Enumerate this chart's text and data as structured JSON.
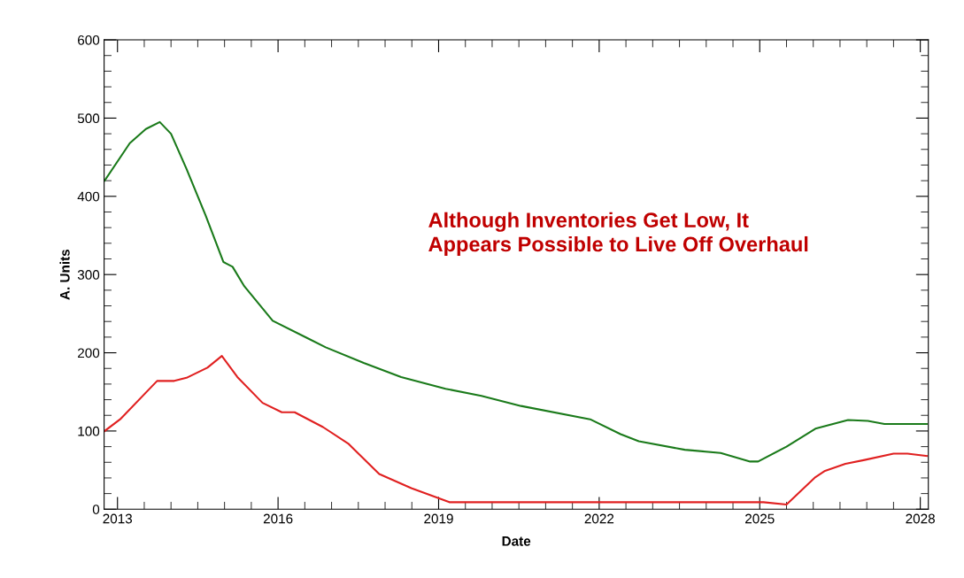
{
  "chart_data": {
    "type": "line",
    "xlabel": "Date",
    "ylabel": "A. Units",
    "xlim": [
      2012.75,
      2028.15
    ],
    "ylim": [
      0,
      600
    ],
    "xticks": [
      2013,
      2016,
      2019,
      2022,
      2025,
      2028
    ],
    "yticks": [
      0,
      100,
      200,
      300,
      400,
      500,
      600
    ],
    "grid": false,
    "legend": false,
    "marker": "none",
    "line_style": "solid",
    "annotations": [
      "Although Inventories Get Low, It\nAppears Possible to Live Off Overhaul"
    ],
    "series": [
      {
        "color": "#1a7a1a",
        "x": [
          2012.76,
          2013.23,
          2013.53,
          2013.79,
          2014.0,
          2014.29,
          2014.65,
          2014.98,
          2015.15,
          2015.37,
          2015.9,
          2016.54,
          2016.89,
          2017.6,
          2018.3,
          2019.13,
          2019.8,
          2020.54,
          2021.83,
          2022.4,
          2022.74,
          2023.6,
          2024.27,
          2024.82,
          2024.97,
          2025.5,
          2026.04,
          2026.65,
          2027.02,
          2027.33,
          2028.12
        ],
        "values": [
          420,
          468,
          486,
          495,
          480,
          435,
          375,
          316,
          310,
          285,
          241,
          219,
          207,
          187,
          169,
          154,
          145,
          132,
          115,
          96,
          87,
          76,
          72,
          61,
          61,
          80,
          103,
          114,
          113,
          109,
          109
        ]
      },
      {
        "color": "#e02020",
        "x": [
          2012.76,
          2013.05,
          2013.74,
          2014.06,
          2014.29,
          2014.68,
          2014.95,
          2015.24,
          2015.71,
          2016.07,
          2016.31,
          2016.84,
          2017.31,
          2017.89,
          2018.49,
          2019.2,
          2019.66,
          2025.07,
          2025.5,
          2026.04,
          2026.22,
          2026.6,
          2026.96,
          2027.5,
          2027.76,
          2028.12
        ],
        "values": [
          100,
          115,
          164,
          164,
          168,
          181,
          196,
          169,
          136,
          124,
          124,
          105,
          84,
          45,
          27,
          9,
          9,
          9,
          6,
          41,
          49,
          58,
          63,
          71,
          71,
          68
        ]
      }
    ]
  }
}
